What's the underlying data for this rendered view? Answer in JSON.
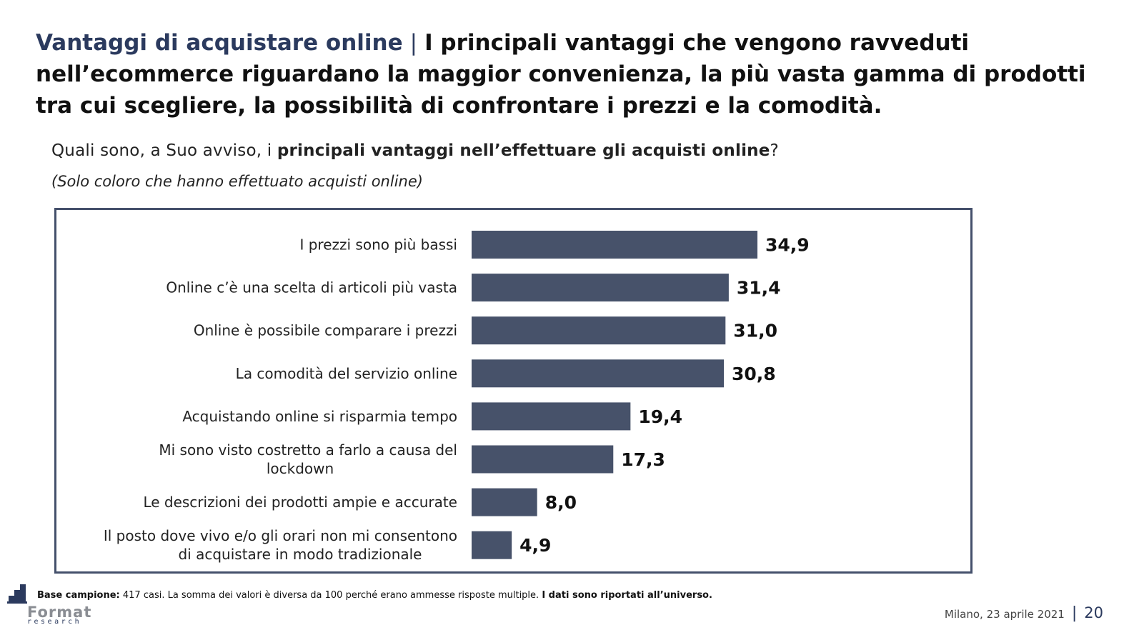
{
  "header": {
    "title_accent": "Vantaggi di acquistare online",
    "title_sep": "|",
    "title_main": "I principali vantaggi che vengono ravveduti nell’ecommerce riguardano la maggior convenienza, la più vasta gamma di prodotti tra cui scegliere, la possibilità di confrontare i prezzi e la comodità."
  },
  "question": {
    "prefix": "Quali sono, a Suo avviso, i ",
    "bold": "principali vantaggi nell’effettuare gli acquisti online",
    "suffix": "?"
  },
  "subnote": "(Solo coloro che hanno effettuato acquisti online)",
  "chart_data": {
    "type": "bar",
    "orientation": "horizontal",
    "categories": [
      [
        "I prezzi sono più bassi"
      ],
      [
        "Online c’è una scelta di articoli più vasta"
      ],
      [
        "Online è possibile comparare i prezzi"
      ],
      [
        "La comodità del servizio online"
      ],
      [
        "Acquistando online si risparmia tempo"
      ],
      [
        "Mi sono visto costretto a farlo a causa del",
        "lockdown"
      ],
      [
        "Le descrizioni dei prodotti ampie e accurate"
      ],
      [
        "Il posto dove vivo e/o gli orari non mi consentono",
        "di acquistare in modo tradizionale"
      ]
    ],
    "values": [
      34.9,
      31.4,
      31.0,
      30.8,
      19.4,
      17.3,
      8.0,
      4.9
    ],
    "value_labels": [
      "34,9",
      "31,4",
      "31,0",
      "30,8",
      "19,4",
      "17,3",
      "8,0",
      "4,9"
    ],
    "bar_color": "#47526a",
    "xlim": [
      0,
      40
    ],
    "grid": false,
    "legend": "none"
  },
  "footer": {
    "base_bold": "Base campione:",
    "base_text": " 417 casi. La somma dei valori è diversa da 100 perché erano ammesse risposte multiple. ",
    "base_bold2": "I dati sono riportati all’universo.",
    "date": "Milano, 23 aprile 2021",
    "sep": "|",
    "page": "20"
  },
  "logo": {
    "word": "Format",
    "sub": "research"
  },
  "colors": {
    "accent": "#2b3a5e",
    "bar": "#47526a",
    "frame": "#44506b"
  }
}
